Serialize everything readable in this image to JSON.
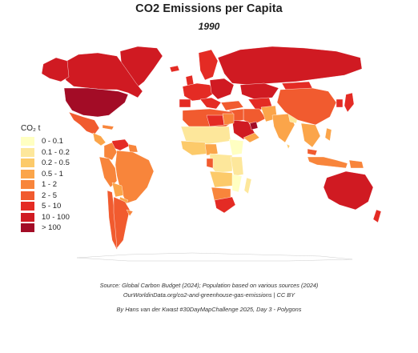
{
  "title": "CO2 Emissions per Capita",
  "year": "1990",
  "legend": {
    "title": "CO₂ t",
    "classes": [
      {
        "label": "0 - 0.1",
        "color": "#ffffc2"
      },
      {
        "label": "0.1 - 0.2",
        "color": "#fde79b"
      },
      {
        "label": "0.2 - 0.5",
        "color": "#fcca6a"
      },
      {
        "label": "0.5 - 1",
        "color": "#fba54a"
      },
      {
        "label": "1 - 2",
        "color": "#f8853b"
      },
      {
        "label": "2 - 5",
        "color": "#f15b2f"
      },
      {
        "label": "5 - 10",
        "color": "#e42b24"
      },
      {
        "label": "10 - 100",
        "color": "#d01a22"
      },
      {
        "label": "> 100",
        "color": "#a30c26"
      }
    ]
  },
  "footer": {
    "source": "Source: Global Carbon Budget (2024); Population based on various sources (2024)",
    "url": "OurWorldinData.org/co2-and-greenhouse-gas-emissions | CC BY",
    "credit": "By Hans van der Kwast #30DayMapChallenge 2025, Day 3 - Polygons"
  }
}
